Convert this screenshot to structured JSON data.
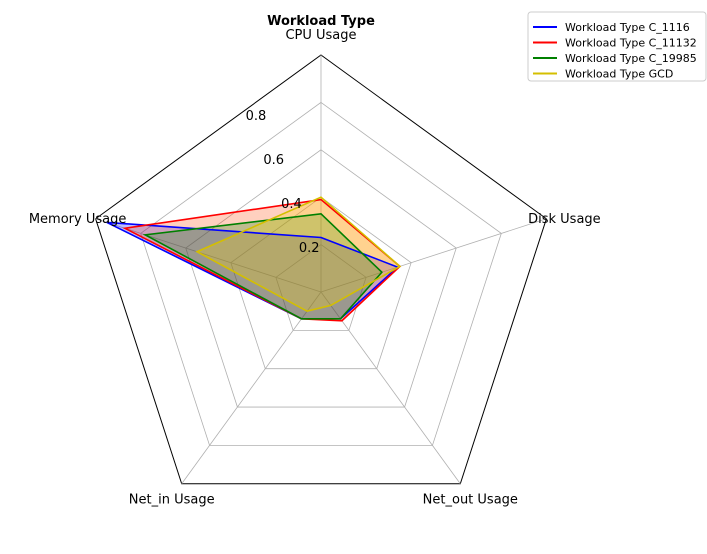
{
  "chart_data": {
    "type": "radar",
    "title": "Workload Type",
    "axes": [
      "CPU Usage",
      "Disk Usage",
      "Net_out Usage",
      "Net_in Usage",
      "Memory Usage"
    ],
    "rlim": [
      0,
      1.0
    ],
    "rticks": [
      0.2,
      0.4,
      0.6,
      0.8
    ],
    "rtick_labels": [
      "0.2",
      "0.4",
      "0.6",
      "0.8"
    ],
    "grid": true,
    "legend_position": "top-right",
    "series": [
      {
        "name": "Workload Type C_1116",
        "color": "#0000ff",
        "fill": "#0000ff",
        "values": [
          0.23,
          0.34,
          0.14,
          0.14,
          0.95
        ]
      },
      {
        "name": "Workload Type C_11132",
        "color": "#ff0000",
        "fill": "#ff4500",
        "values": [
          0.39,
          0.35,
          0.15,
          0.14,
          0.87
        ]
      },
      {
        "name": "Workload Type C_19985",
        "color": "#008000",
        "fill": "#008000",
        "values": [
          0.33,
          0.27,
          0.14,
          0.14,
          0.78
        ]
      },
      {
        "name": "Workload Type GCD",
        "color": "#d4bf00",
        "fill": "#ffd700",
        "values": [
          0.4,
          0.35,
          0.07,
          0.1,
          0.55
        ]
      }
    ]
  }
}
